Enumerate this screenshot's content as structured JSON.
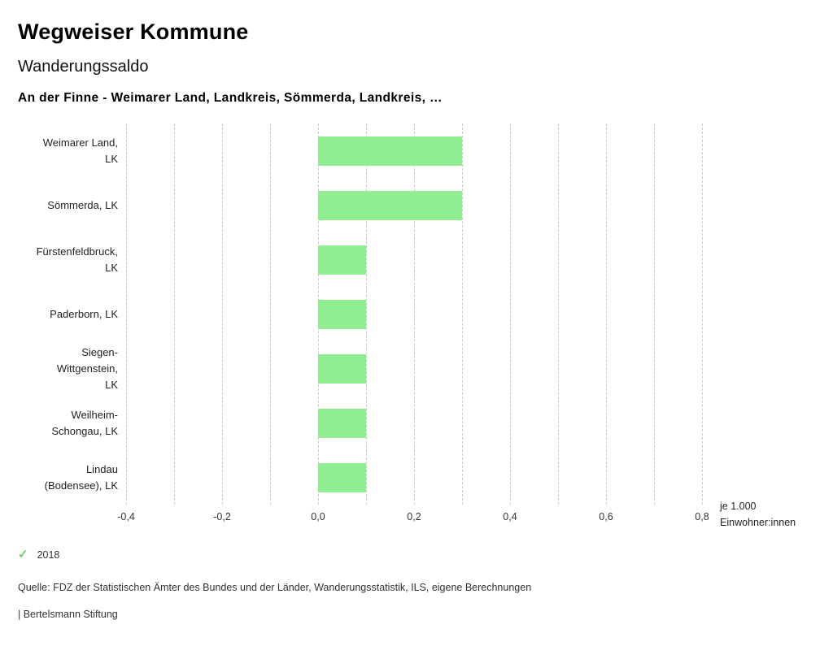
{
  "header": {
    "title": "Wegweiser Kommune",
    "subtitle": "Wanderungssaldo",
    "selection": "An der Finne - Weimarer Land, Landkreis, Sömmerda, Landkreis, …"
  },
  "colors": {
    "bar_green": "#90ee90",
    "check_green": "#6fcf6f",
    "gridline_gray": "#c9c9c9"
  },
  "chart_data": {
    "type": "bar",
    "orientation": "horizontal",
    "title": "Wanderungssaldo",
    "categories": [
      "Weimarer Land, LK",
      "Sömmerda, LK",
      "Fürstenfeldbruck, LK",
      "Paderborn, LK",
      "Siegen-Wittgenstein, LK",
      "Weilheim-Schongau, LK",
      "Lindau (Bodensee), LK"
    ],
    "category_lines": [
      [
        "Weimarer Land,",
        "LK"
      ],
      [
        "Sömmerda, LK"
      ],
      [
        "Fürstenfeldbruck,",
        "LK"
      ],
      [
        "Paderborn, LK"
      ],
      [
        "Siegen-",
        "Wittgenstein,",
        "LK"
      ],
      [
        "Weilheim-",
        "Schongau, LK"
      ],
      [
        "Lindau",
        "(Bodensee), LK"
      ]
    ],
    "series": [
      {
        "name": "2018",
        "values": [
          0.3,
          0.3,
          0.1,
          0.1,
          0.1,
          0.1,
          0.1
        ]
      }
    ],
    "xlim": [
      -0.4,
      0.8
    ],
    "grid_interval": 0.1,
    "grid": "dashed-vertical",
    "xticks": [
      -0.4,
      -0.2,
      0.0,
      0.2,
      0.4,
      0.6,
      0.8
    ],
    "xtick_labels": [
      "-0,4",
      "-0,2",
      "0,0",
      "0,2",
      "0,4",
      "0,6",
      "0,8"
    ],
    "unit_label_lines": [
      "je 1.000",
      "Einwohner:innen"
    ],
    "bar_color": "#90ee90",
    "legend_position": "bottom-left"
  },
  "legend": {
    "check_icon": "✓",
    "items": [
      {
        "label": "2018",
        "color": "#6fcf6f"
      }
    ]
  },
  "footer": {
    "source": "Quelle: FDZ der Statistischen Ämter des Bundes und der Länder, Wanderungsstatistik, ILS, eigene Berechnungen",
    "branding": "| Bertelsmann Stiftung"
  }
}
